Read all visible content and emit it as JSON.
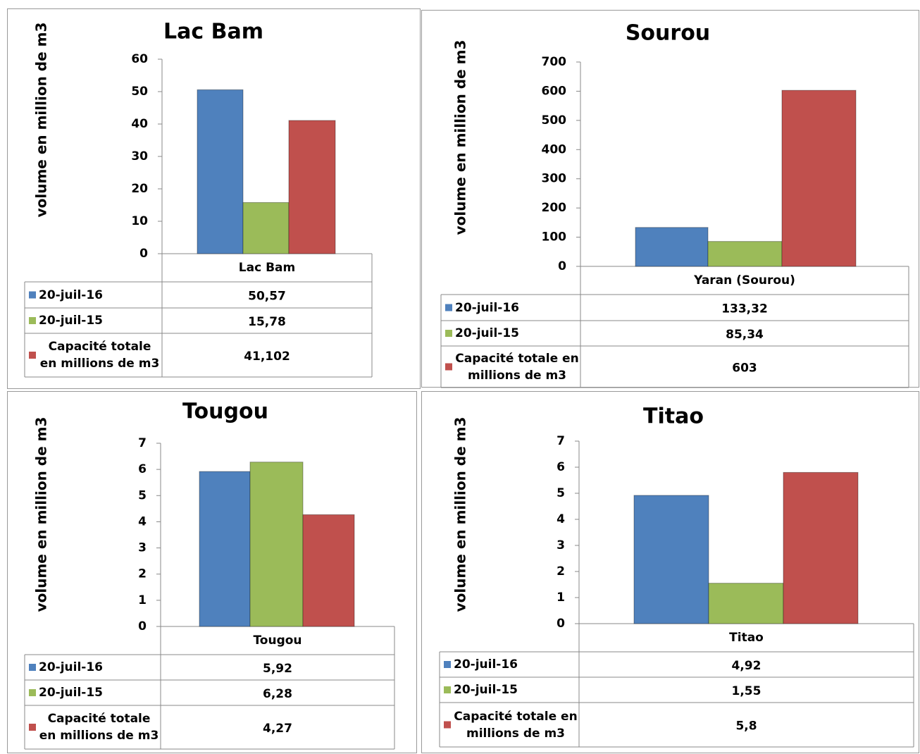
{
  "chart_data": [
    {
      "type": "bar",
      "title": "Lac Bam",
      "y_label": "volume en million de m3",
      "categories": [
        "Lac Bam"
      ],
      "series": [
        {
          "name": "20-juil-16",
          "color": "#4f81bd",
          "values": [
            50.57
          ],
          "value_labels": [
            "50,57"
          ]
        },
        {
          "name": "20-juil-15",
          "color": "#9bbb59",
          "values": [
            15.78
          ],
          "value_labels": [
            "15,78"
          ]
        },
        {
          "name": "Capacité totale en millions de m3",
          "color": "#c0504d",
          "values": [
            41.102
          ],
          "value_labels": [
            "41,102"
          ]
        }
      ],
      "ylim": [
        0,
        60
      ],
      "yticks": [
        0,
        10,
        20,
        30,
        40,
        50,
        60
      ]
    },
    {
      "type": "bar",
      "title": "Sourou",
      "y_label": "volume en million de m3",
      "categories": [
        "Yaran (Sourou)"
      ],
      "series": [
        {
          "name": "20-juil-16",
          "color": "#4f81bd",
          "values": [
            133.32
          ],
          "value_labels": [
            "133,32"
          ]
        },
        {
          "name": "20-juil-15",
          "color": "#9bbb59",
          "values": [
            85.34
          ],
          "value_labels": [
            "85,34"
          ]
        },
        {
          "name": "Capacité totale en millions de m3",
          "color": "#c0504d",
          "values": [
            603
          ]
        }
      ],
      "ylim": [
        0,
        700
      ],
      "yticks": [
        0,
        100,
        200,
        300,
        400,
        500,
        600,
        700
      ]
    },
    {
      "type": "bar",
      "title": "Tougou",
      "y_label": "volume en million de m3",
      "categories": [
        "Tougou"
      ],
      "series": [
        {
          "name": "20-juil-16",
          "color": "#4f81bd",
          "values": [
            5.92
          ],
          "value_labels": [
            "5,92"
          ]
        },
        {
          "name": "20-juil-15",
          "color": "#9bbb59",
          "values": [
            6.28
          ],
          "value_labels": [
            "6,28"
          ]
        },
        {
          "name": "Capacité totale en millions de m3",
          "color": "#c0504d",
          "values": [
            4.27
          ],
          "value_labels": [
            "4,27"
          ]
        }
      ],
      "ylim": [
        0,
        7
      ],
      "yticks": [
        0,
        1,
        2,
        3,
        4,
        5,
        6,
        7
      ]
    },
    {
      "type": "bar",
      "title": "Titao",
      "y_label": "volume en million de m3",
      "categories": [
        "Titao"
      ],
      "series": [
        {
          "name": "20-juil-16",
          "color": "#4f81bd",
          "values": [
            4.92
          ],
          "value_labels": [
            "4,92"
          ]
        },
        {
          "name": "20-juil-15",
          "color": "#9bbb59",
          "values": [
            1.55
          ],
          "value_labels": [
            "1,55"
          ]
        },
        {
          "name": "Capacité totale en millions de m3",
          "color": "#c0504d",
          "values": [
            5.8
          ],
          "value_labels": [
            "5,8"
          ]
        }
      ],
      "ylim": [
        0,
        7
      ],
      "yticks": [
        0,
        1,
        2,
        3,
        4,
        5,
        6,
        7
      ]
    }
  ]
}
